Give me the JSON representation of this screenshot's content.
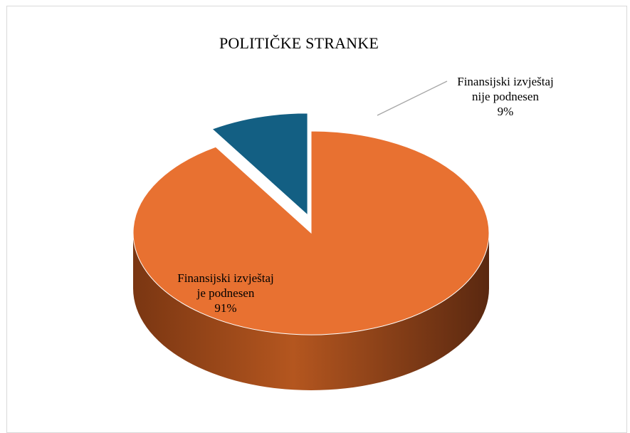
{
  "chart_data": {
    "type": "pie",
    "title": "POLITIČKE STRANKE",
    "slices": [
      {
        "label_lines": [
          "Finansijski izvještaj",
          "je podnesen"
        ],
        "percent_label": "91%",
        "value": 91,
        "color": "#E87131",
        "exploded": false
      },
      {
        "label_lines": [
          "Finansijski izvještaj",
          "nije podnesen"
        ],
        "percent_label": "9%",
        "value": 9,
        "color": "#135F83",
        "exploded": true
      }
    ],
    "style": "3d-exploded",
    "legend": "none",
    "data_labels": "category-and-percent"
  }
}
